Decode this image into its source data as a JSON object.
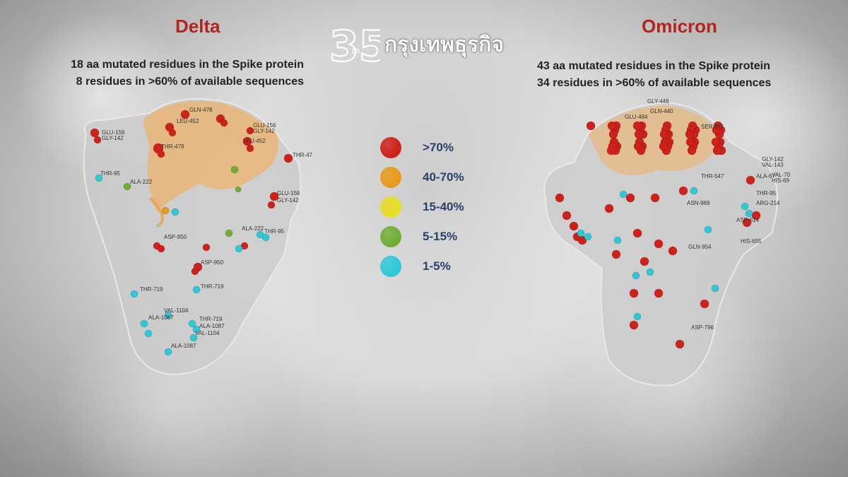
{
  "logo": {
    "number": "35",
    "superscript": "th",
    "wordmark": "กรุงเทพธุรกิจ"
  },
  "delta": {
    "title": "Delta",
    "line1": "18 aa mutated residues in the Spike protein",
    "line2": "8 residues in >60% of available sequences",
    "labels": [
      "GLU-156",
      "GLY-142",
      "THR-95",
      "ALA-222",
      "GLN-478",
      "LEU-452",
      "GLU-156",
      "GLY-142",
      "LEU-452",
      "THR-478",
      "THR-478",
      "GLU-156",
      "GLY-142",
      "ASP-950",
      "ASP-950",
      "THR-95",
      "ALA-222",
      "THR-719",
      "THR-719",
      "VAL-1104",
      "ALA-1087",
      "THR-719",
      "ALA-1087",
      "VAL-1104",
      "ALA-1087"
    ]
  },
  "omicron": {
    "title": "Omicron",
    "line1": "43 aa mutated residues in the Spike protein",
    "line2": "34 residues in >60% of available sequences",
    "labels": [
      "GLY-446",
      "GLN-440",
      "GLU-484",
      "SER-371",
      "THR-547",
      "GLY-142",
      "VAL-143",
      "ALA-67",
      "VAL-70",
      "HIS-69",
      "THR-95",
      "ARG-214",
      "ASP-614",
      "HIS-655",
      "ASN-969",
      "GLN-954",
      "ASP-796"
    ]
  },
  "legend": [
    {
      "label": ">70%",
      "color": "#d0201a"
    },
    {
      "label": "40-70%",
      "color": "#e99a1c"
    },
    {
      "label": "15-40%",
      "color": "#e8de22"
    },
    {
      "label": "5-15%",
      "color": "#6fae35"
    },
    {
      "label": "1-5%",
      "color": "#2ec9d8"
    }
  ]
}
